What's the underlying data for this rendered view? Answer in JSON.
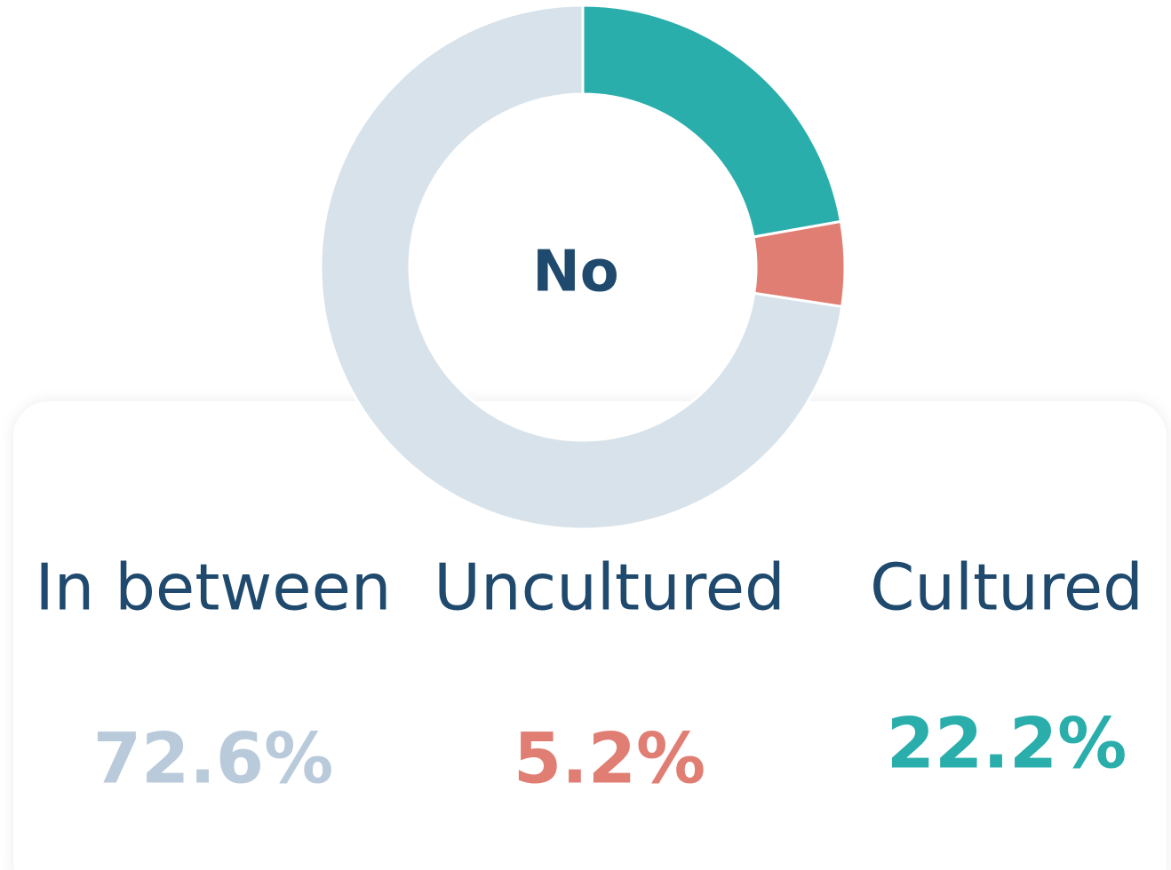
{
  "chart_data": {
    "type": "pie",
    "center_label": "No",
    "categories": [
      "In between",
      "Uncultured",
      "Cultured"
    ],
    "values": [
      72.6,
      5.2,
      22.2
    ],
    "value_labels": [
      "72.6%",
      "5.2%",
      "22.2%"
    ],
    "colors": [
      "#d7e2ea",
      "#e17e73",
      "#2aaeab"
    ],
    "label_colors": [
      "#b9cadb",
      "#e17e73",
      "#2aaeab"
    ]
  }
}
